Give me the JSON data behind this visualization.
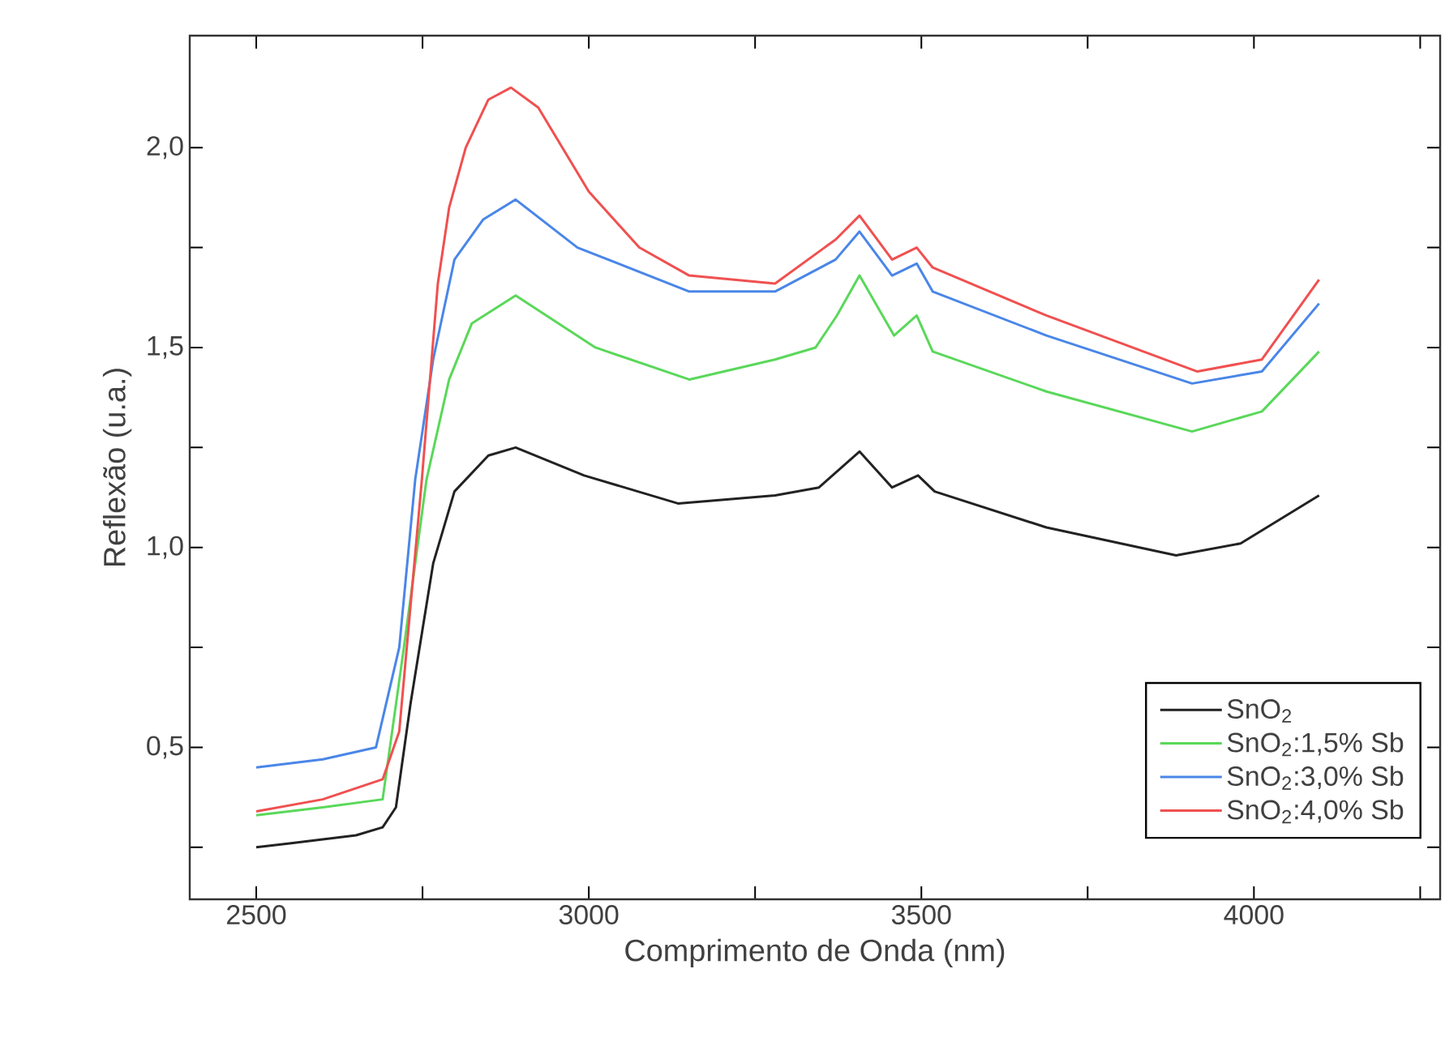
{
  "chart_data": {
    "type": "line",
    "xlabel": "Comprimento de Onda (nm)",
    "ylabel": "Reflexão (u.a.)",
    "xlim": [
      2400,
      4280
    ],
    "ylim": [
      0.12,
      2.28
    ],
    "xticks": [
      2500,
      {
        "value": 2750,
        "label": null
      },
      3000,
      {
        "value": 3250,
        "label": null
      },
      3500,
      {
        "value": 3750,
        "label": null
      },
      4000,
      {
        "value": 4250,
        "label": null
      }
    ],
    "yticks": [
      {
        "value": 0.25,
        "label": null
      },
      {
        "value": 0.5,
        "label": "0,5"
      },
      {
        "value": 0.75,
        "label": null
      },
      {
        "value": 1.0,
        "label": "1,0"
      },
      {
        "value": 1.25,
        "label": null
      },
      {
        "value": 1.5,
        "label": "1,5"
      },
      {
        "value": 1.75,
        "label": null
      },
      {
        "value": 2.0,
        "label": "2,0"
      }
    ],
    "legend": "bottom right",
    "series": [
      {
        "name": "SnO$_{2}$",
        "color": "#222222",
        "x": [
          2500,
          2550,
          2600,
          2650,
          2690,
          2710,
          2732,
          2766,
          2798,
          2849,
          2890,
          2993,
          3134,
          3280,
          3346,
          3407,
          3456,
          3495,
          3520,
          3688,
          3883,
          3980,
          4098
        ],
        "values": [
          0.25,
          0.26,
          0.27,
          0.28,
          0.3,
          0.35,
          0.61,
          0.96,
          1.14,
          1.23,
          1.25,
          1.18,
          1.11,
          1.13,
          1.15,
          1.24,
          1.15,
          1.18,
          1.14,
          1.05,
          0.98,
          1.01,
          1.13
        ]
      },
      {
        "name": "SnO$_{2}$:1,5% Sb",
        "color": "#5ad85a",
        "x": [
          2500,
          2600,
          2690,
          2722,
          2756,
          2790,
          2824,
          2890,
          3010,
          3151,
          3280,
          3341,
          3373,
          3407,
          3459,
          3493,
          3517,
          3688,
          3907,
          4012,
          4098
        ],
        "values": [
          0.33,
          0.35,
          0.37,
          0.75,
          1.17,
          1.42,
          1.56,
          1.63,
          1.5,
          1.42,
          1.47,
          1.5,
          1.58,
          1.68,
          1.53,
          1.58,
          1.49,
          1.39,
          1.29,
          1.34,
          1.49
        ]
      },
      {
        "name": "SnO$_{2}$:3,0% Sb",
        "color": "#4a86e8",
        "x": [
          2500,
          2600,
          2680,
          2715,
          2739,
          2766,
          2798,
          2841,
          2890,
          2983,
          3151,
          3280,
          3371,
          3407,
          3456,
          3493,
          3517,
          3688,
          3907,
          4012,
          4098
        ],
        "values": [
          0.45,
          0.47,
          0.5,
          0.75,
          1.17,
          1.47,
          1.72,
          1.82,
          1.87,
          1.75,
          1.64,
          1.64,
          1.72,
          1.79,
          1.68,
          1.71,
          1.64,
          1.53,
          1.41,
          1.44,
          1.61
        ]
      },
      {
        "name": "SnO$_{2}$:4,0% Sb",
        "color": "#f05050",
        "x": [
          2500,
          2600,
          2690,
          2715,
          2749,
          2773,
          2790,
          2815,
          2849,
          2883,
          2924,
          3000,
          3076,
          3151,
          3280,
          3371,
          3407,
          3456,
          3493,
          3517,
          3688,
          3915,
          4012,
          4098
        ],
        "values": [
          0.34,
          0.37,
          0.42,
          0.54,
          1.17,
          1.66,
          1.85,
          2.0,
          2.12,
          2.15,
          2.1,
          1.89,
          1.75,
          1.68,
          1.66,
          1.77,
          1.83,
          1.72,
          1.75,
          1.7,
          1.58,
          1.44,
          1.47,
          1.67
        ]
      }
    ]
  }
}
